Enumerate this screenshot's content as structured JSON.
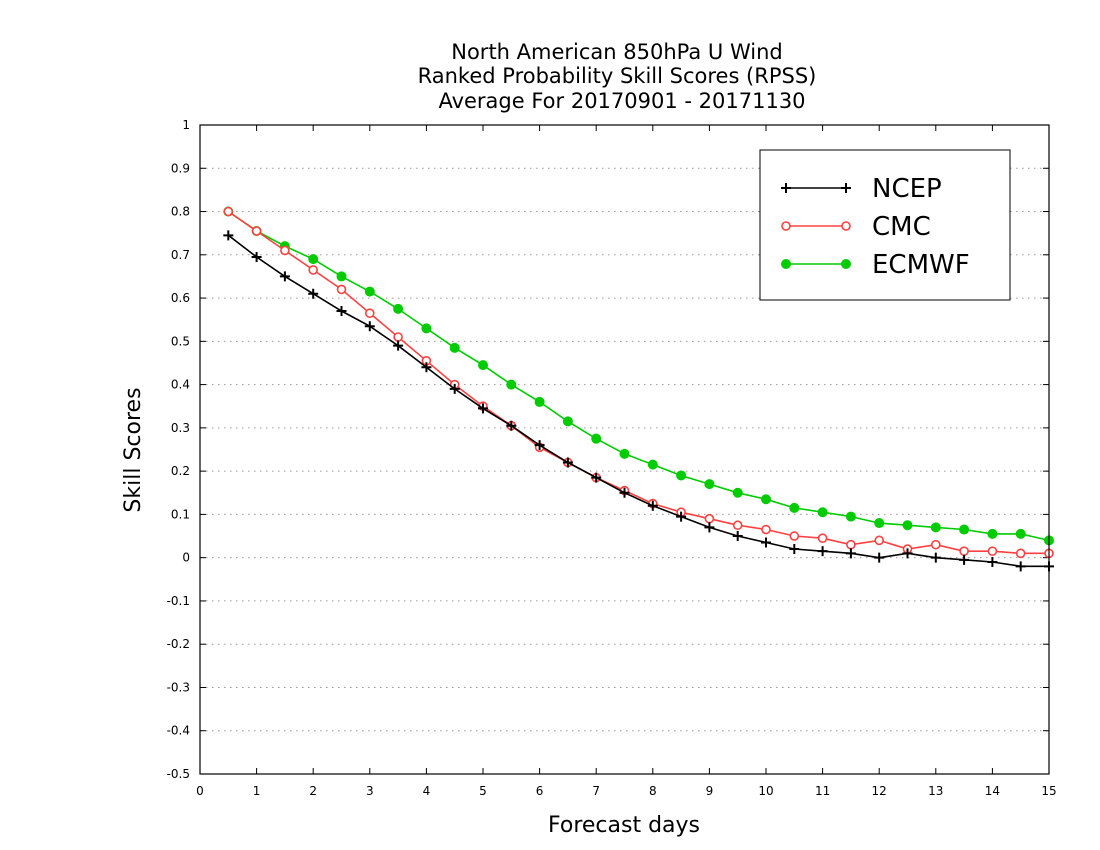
{
  "chart_data": {
    "type": "line",
    "title": [
      "North American 850hPa U Wind",
      "Ranked Probability Skill Scores (RPSS)",
      "Average For 20170901 - 20171130"
    ],
    "xlabel": "Forecast days",
    "ylabel": "Skill Scores",
    "xlim": [
      0,
      15
    ],
    "ylim": [
      -0.5,
      1
    ],
    "xticks": [
      0,
      1,
      2,
      3,
      4,
      5,
      6,
      7,
      8,
      9,
      10,
      11,
      12,
      13,
      14,
      15
    ],
    "xtick_labels": [
      "0",
      "1",
      "2",
      "3",
      "4",
      "5",
      "6",
      "7",
      "8",
      "9",
      "10",
      "11",
      "12",
      "13",
      "14",
      "15"
    ],
    "yticks": [
      -0.5,
      -0.4,
      -0.3,
      -0.2,
      -0.1,
      0,
      0.1,
      0.2,
      0.3,
      0.4,
      0.5,
      0.6,
      0.7,
      0.8,
      0.9,
      1
    ],
    "ytick_labels": [
      "-0.5",
      "-0.4",
      "-0.3",
      "-0.2",
      "-0.1",
      "0",
      "0.1",
      "0.2",
      "0.3",
      "0.4",
      "0.5",
      "0.6",
      "0.7",
      "0.8",
      "0.9",
      "1"
    ],
    "grid": true,
    "legend_position": "top-right",
    "x": [
      0.5,
      1,
      1.5,
      2,
      2.5,
      3,
      3.5,
      4,
      4.5,
      5,
      5.5,
      6,
      6.5,
      7,
      7.5,
      8,
      8.5,
      9,
      9.5,
      10,
      10.5,
      11,
      11.5,
      12,
      12.5,
      13,
      13.5,
      14,
      14.5,
      15
    ],
    "series": [
      {
        "name": "NCEP",
        "color": "#000000",
        "marker": "plus",
        "values": [
          0.745,
          0.695,
          0.65,
          0.61,
          0.57,
          0.535,
          0.49,
          0.44,
          0.39,
          0.345,
          0.305,
          0.26,
          0.22,
          0.185,
          0.15,
          0.12,
          0.095,
          0.07,
          0.05,
          0.035,
          0.02,
          0.015,
          0.01,
          0.0,
          0.01,
          0.0,
          -0.005,
          -0.01,
          -0.02,
          -0.02
        ]
      },
      {
        "name": "CMC",
        "color": "#ff4040",
        "marker": "open-circle",
        "values": [
          0.8,
          0.755,
          0.71,
          0.665,
          0.62,
          0.565,
          0.51,
          0.455,
          0.4,
          0.35,
          0.305,
          0.255,
          0.22,
          0.185,
          0.155,
          0.125,
          0.105,
          0.09,
          0.075,
          0.065,
          0.05,
          0.045,
          0.03,
          0.04,
          0.02,
          0.03,
          0.015,
          0.015,
          0.01,
          0.01
        ]
      },
      {
        "name": "ECMWF",
        "color": "#00cc00",
        "marker": "filled-circle",
        "values": [
          0.8,
          0.755,
          0.72,
          0.69,
          0.65,
          0.615,
          0.575,
          0.53,
          0.485,
          0.445,
          0.4,
          0.36,
          0.315,
          0.275,
          0.24,
          0.215,
          0.19,
          0.17,
          0.15,
          0.135,
          0.115,
          0.105,
          0.095,
          0.08,
          0.075,
          0.07,
          0.065,
          0.055,
          0.055,
          0.04
        ]
      }
    ]
  }
}
